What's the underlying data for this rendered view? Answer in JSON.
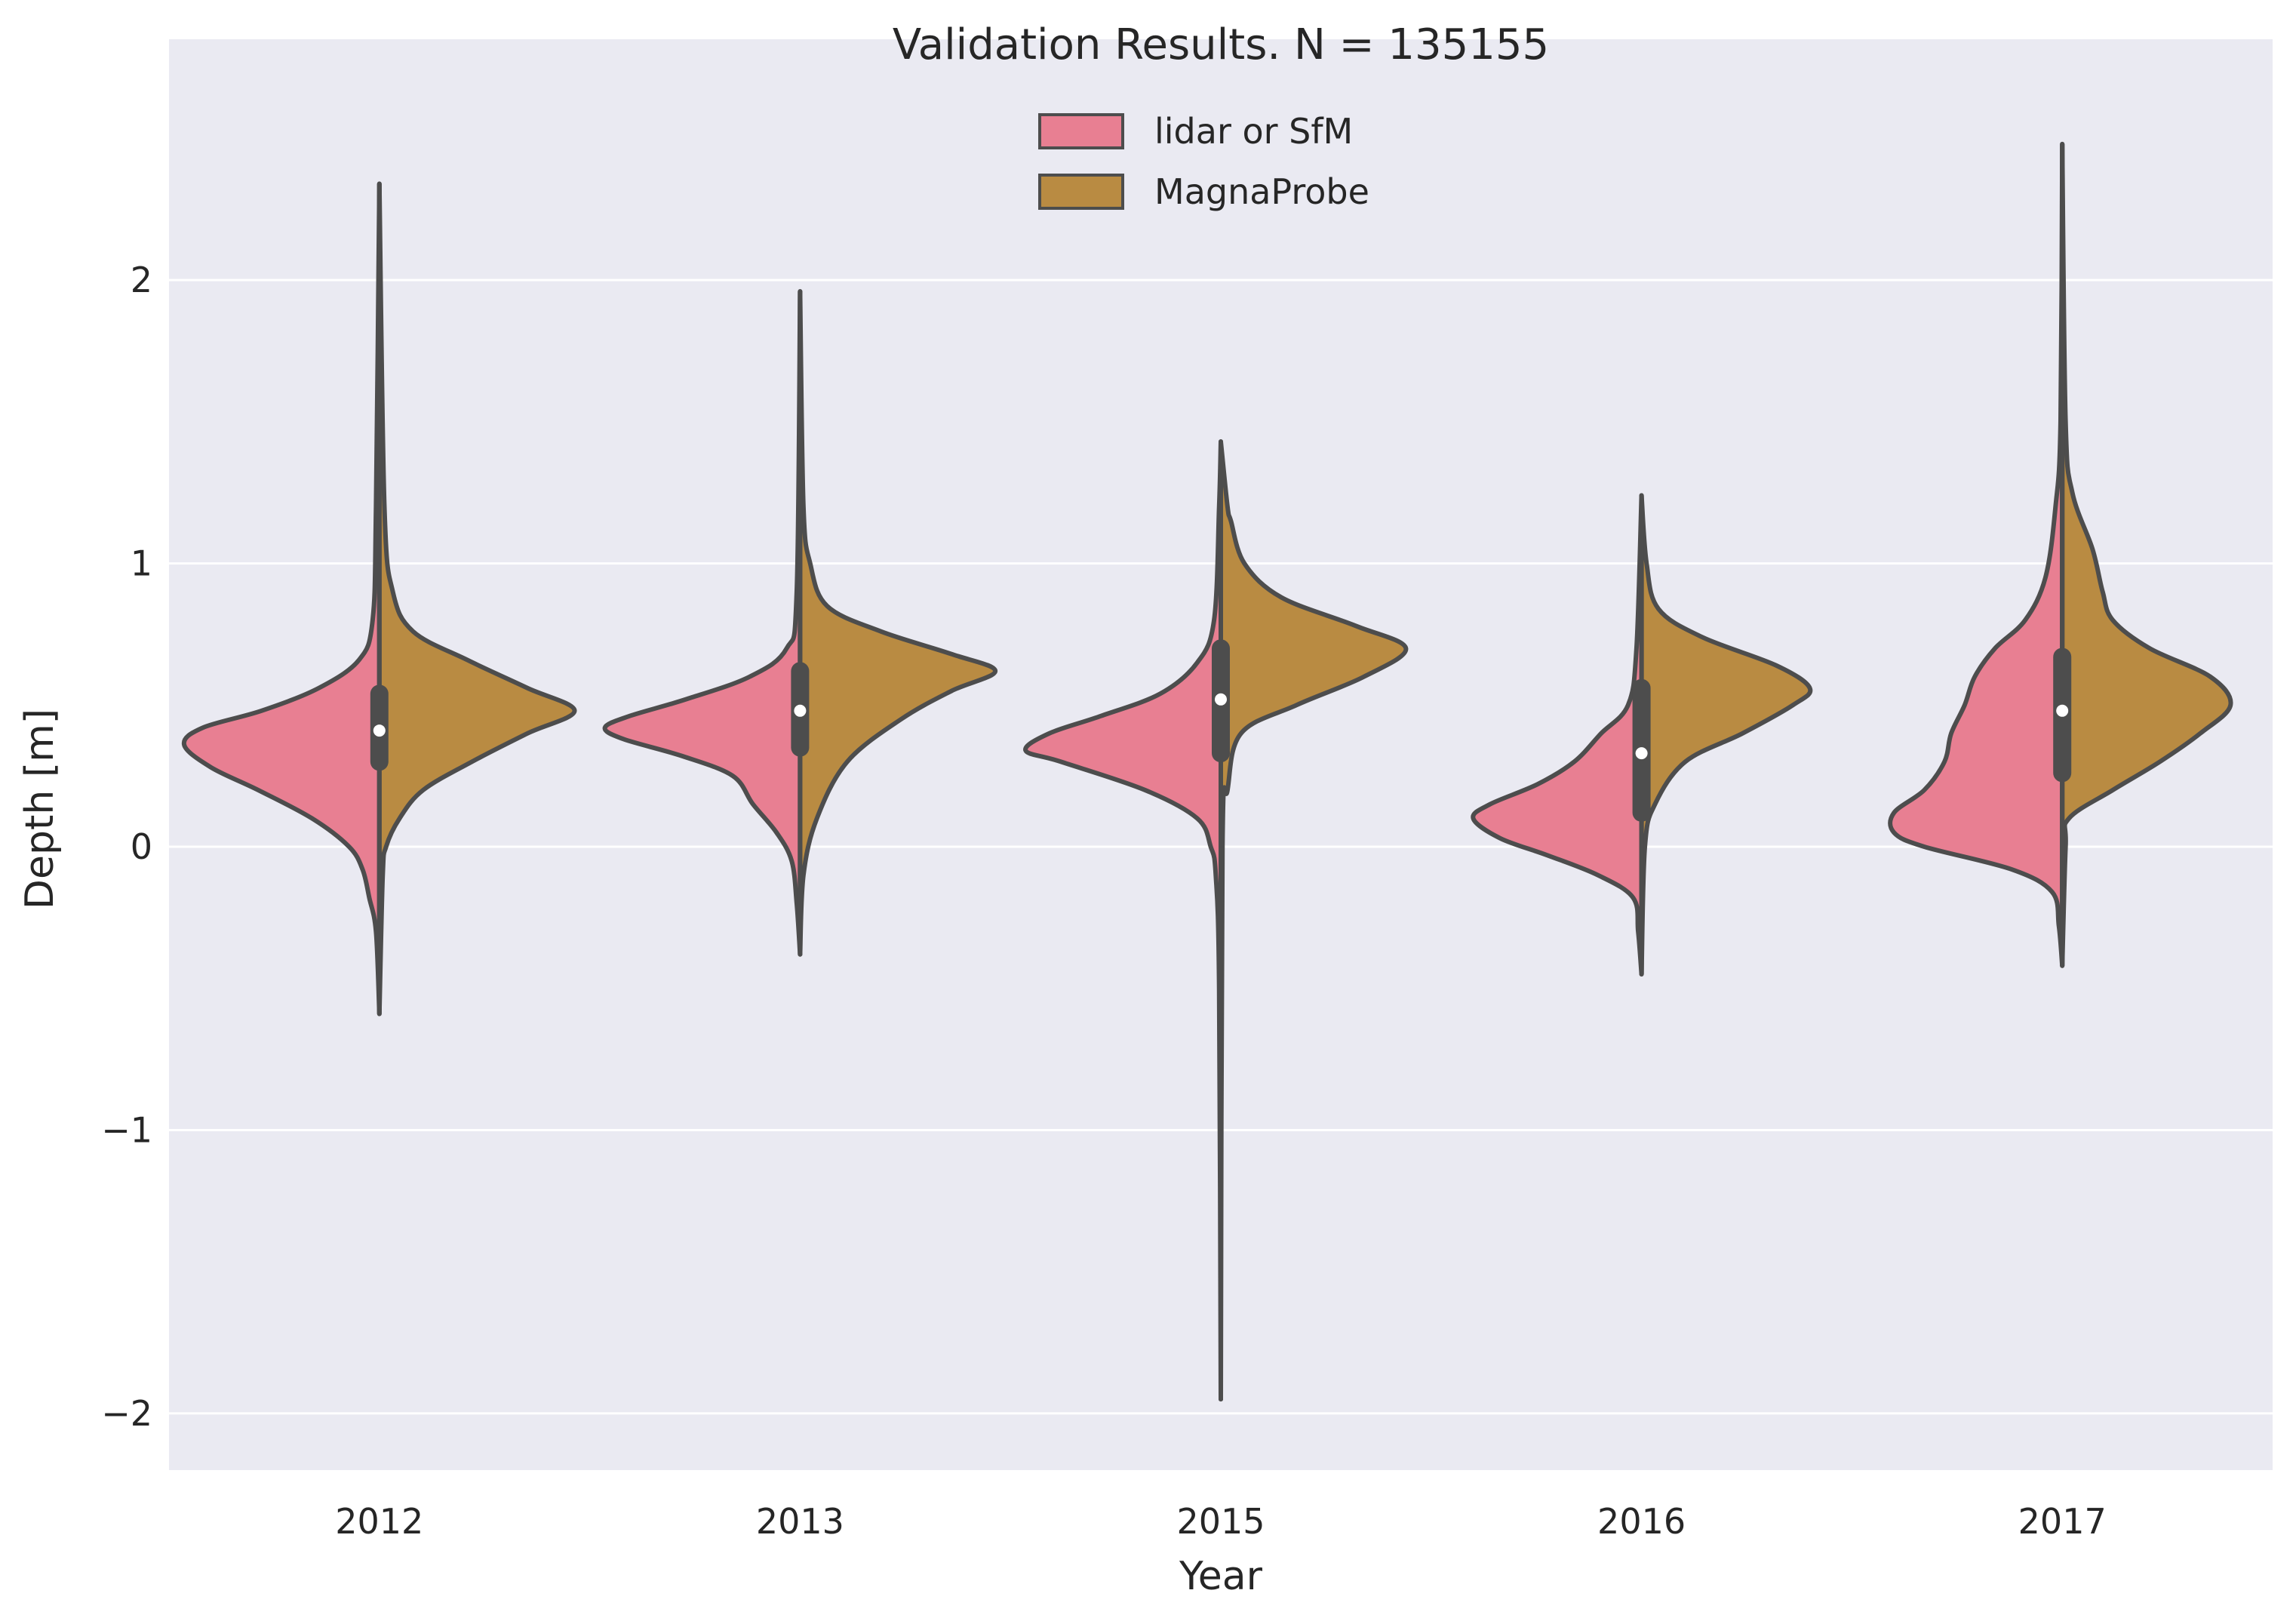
{
  "chart_data": {
    "type": "violin",
    "title": "Validation Results. N = 135155",
    "xlabel": "Year",
    "ylabel": "Depth [m]",
    "categories": [
      "2012",
      "2013",
      "2015",
      "2016",
      "2017"
    ],
    "yticks": [
      2,
      1,
      0,
      -1,
      -2
    ],
    "ytick_labels": [
      "2",
      "1",
      "0",
      "−1",
      "−2"
    ],
    "ylim": [
      -2.2,
      2.85
    ],
    "grid": true,
    "split": true,
    "legend_position": "upper-center",
    "series": [
      {
        "name": "lidar or SfM",
        "color": "#e87f92",
        "violins": [
          {
            "profile": [
              [
                -0.59,
                0
              ],
              [
                -0.3,
                0.02
              ],
              [
                -0.18,
                0.06
              ],
              [
                -0.08,
                0.1
              ],
              [
                0.0,
                0.18
              ],
              [
                0.1,
                0.4
              ],
              [
                0.2,
                0.72
              ],
              [
                0.28,
                1.0
              ],
              [
                0.36,
                1.16
              ],
              [
                0.42,
                1.05
              ],
              [
                0.48,
                0.7
              ],
              [
                0.56,
                0.36
              ],
              [
                0.66,
                0.12
              ],
              [
                0.8,
                0.04
              ],
              [
                1.2,
                0.02
              ],
              [
                2.34,
                0
              ]
            ]
          },
          {
            "profile": [
              [
                -0.38,
                0
              ],
              [
                -0.2,
                0.02
              ],
              [
                -0.05,
                0.05
              ],
              [
                0.05,
                0.14
              ],
              [
                0.15,
                0.28
              ],
              [
                0.25,
                0.4
              ],
              [
                0.32,
                0.7
              ],
              [
                0.38,
                1.05
              ],
              [
                0.42,
                1.16
              ],
              [
                0.46,
                1.02
              ],
              [
                0.52,
                0.68
              ],
              [
                0.6,
                0.3
              ],
              [
                0.7,
                0.08
              ],
              [
                0.9,
                0.02
              ],
              [
                1.96,
                0
              ]
            ]
          },
          {
            "profile": [
              [
                -1.95,
                0
              ],
              [
                -0.5,
                0.01
              ],
              [
                -0.1,
                0.03
              ],
              [
                0.0,
                0.06
              ],
              [
                0.1,
                0.14
              ],
              [
                0.2,
                0.45
              ],
              [
                0.3,
                0.95
              ],
              [
                0.34,
                1.16
              ],
              [
                0.4,
                1.02
              ],
              [
                0.46,
                0.72
              ],
              [
                0.54,
                0.36
              ],
              [
                0.65,
                0.14
              ],
              [
                0.8,
                0.04
              ],
              [
                1.2,
                0.01
              ],
              [
                1.43,
                0
              ]
            ]
          },
          {
            "profile": [
              [
                -0.45,
                0
              ],
              [
                -0.3,
                0.02
              ],
              [
                -0.18,
                0.05
              ],
              [
                -0.1,
                0.26
              ],
              [
                -0.03,
                0.56
              ],
              [
                0.03,
                0.84
              ],
              [
                0.1,
                1.0
              ],
              [
                0.15,
                0.9
              ],
              [
                0.22,
                0.62
              ],
              [
                0.3,
                0.4
              ],
              [
                0.4,
                0.24
              ],
              [
                0.5,
                0.08
              ],
              [
                0.7,
                0.03
              ],
              [
                1.24,
                0
              ]
            ]
          },
          {
            "profile": [
              [
                -0.42,
                0
              ],
              [
                -0.28,
                0.02
              ],
              [
                -0.16,
                0.06
              ],
              [
                -0.08,
                0.3
              ],
              [
                0.0,
                0.82
              ],
              [
                0.05,
                1.0
              ],
              [
                0.12,
                1.0
              ],
              [
                0.2,
                0.82
              ],
              [
                0.3,
                0.7
              ],
              [
                0.4,
                0.66
              ],
              [
                0.5,
                0.58
              ],
              [
                0.6,
                0.52
              ],
              [
                0.7,
                0.4
              ],
              [
                0.8,
                0.22
              ],
              [
                0.95,
                0.1
              ],
              [
                1.2,
                0.04
              ],
              [
                1.5,
                0.01
              ],
              [
                2.48,
                0
              ]
            ]
          }
        ]
      },
      {
        "name": "MagnaProbe",
        "color": "#b98b42",
        "violins": [
          {
            "profile": [
              [
                -0.59,
                0
              ],
              [
                -0.1,
                0.02
              ],
              [
                0.0,
                0.04
              ],
              [
                0.1,
                0.12
              ],
              [
                0.2,
                0.26
              ],
              [
                0.3,
                0.55
              ],
              [
                0.4,
                0.88
              ],
              [
                0.48,
                1.16
              ],
              [
                0.56,
                0.88
              ],
              [
                0.66,
                0.52
              ],
              [
                0.76,
                0.2
              ],
              [
                0.9,
                0.08
              ],
              [
                1.2,
                0.03
              ],
              [
                2.34,
                0
              ]
            ]
          },
          {
            "profile": [
              [
                -0.38,
                0
              ],
              [
                -0.1,
                0.02
              ],
              [
                0.1,
                0.1
              ],
              [
                0.3,
                0.28
              ],
              [
                0.45,
                0.6
              ],
              [
                0.55,
                0.9
              ],
              [
                0.62,
                1.16
              ],
              [
                0.68,
                0.9
              ],
              [
                0.76,
                0.48
              ],
              [
                0.85,
                0.16
              ],
              [
                1.0,
                0.06
              ],
              [
                1.2,
                0.02
              ],
              [
                1.96,
                0
              ]
            ]
          },
          {
            "profile": [
              [
                -1.95,
                0
              ],
              [
                0.0,
                0.01
              ],
              [
                0.2,
                0.04
              ],
              [
                0.4,
                0.12
              ],
              [
                0.5,
                0.45
              ],
              [
                0.6,
                0.85
              ],
              [
                0.7,
                1.1
              ],
              [
                0.78,
                0.8
              ],
              [
                0.88,
                0.36
              ],
              [
                1.0,
                0.14
              ],
              [
                1.15,
                0.06
              ],
              [
                1.2,
                0.04
              ],
              [
                1.43,
                0
              ]
            ]
          },
          {
            "profile": [
              [
                -0.45,
                0
              ],
              [
                0.0,
                0.02
              ],
              [
                0.15,
                0.08
              ],
              [
                0.3,
                0.26
              ],
              [
                0.4,
                0.6
              ],
              [
                0.5,
                0.9
              ],
              [
                0.56,
                1.0
              ],
              [
                0.64,
                0.8
              ],
              [
                0.74,
                0.36
              ],
              [
                0.84,
                0.1
              ],
              [
                1.0,
                0.03
              ],
              [
                1.24,
                0
              ]
            ]
          },
          {
            "profile": [
              [
                -0.42,
                0
              ],
              [
                0.0,
                0.02
              ],
              [
                0.1,
                0.04
              ],
              [
                0.2,
                0.3
              ],
              [
                0.3,
                0.58
              ],
              [
                0.4,
                0.82
              ],
              [
                0.5,
                1.0
              ],
              [
                0.6,
                0.88
              ],
              [
                0.7,
                0.52
              ],
              [
                0.8,
                0.3
              ],
              [
                0.9,
                0.24
              ],
              [
                1.05,
                0.18
              ],
              [
                1.25,
                0.06
              ],
              [
                1.5,
                0.02
              ],
              [
                2.48,
                0
              ]
            ]
          }
        ]
      }
    ],
    "boxes": [
      {
        "q1": 0.3,
        "median": 0.41,
        "q3": 0.54
      },
      {
        "q1": 0.35,
        "median": 0.48,
        "q3": 0.62
      },
      {
        "q1": 0.33,
        "median": 0.52,
        "q3": 0.7
      },
      {
        "q1": 0.12,
        "median": 0.33,
        "q3": 0.56
      },
      {
        "q1": 0.26,
        "median": 0.48,
        "q3": 0.67
      }
    ],
    "whisker_range": [
      [
        -0.59,
        2.34
      ],
      [
        -0.38,
        1.96
      ],
      [
        -1.95,
        1.43
      ],
      [
        -0.45,
        1.24
      ],
      [
        -0.42,
        2.48
      ]
    ]
  },
  "colors": {
    "plot_background": "#eaeaf2",
    "grid": "#ffffff",
    "outline": "#4d4d4d",
    "median_dot": "#ffffff"
  }
}
